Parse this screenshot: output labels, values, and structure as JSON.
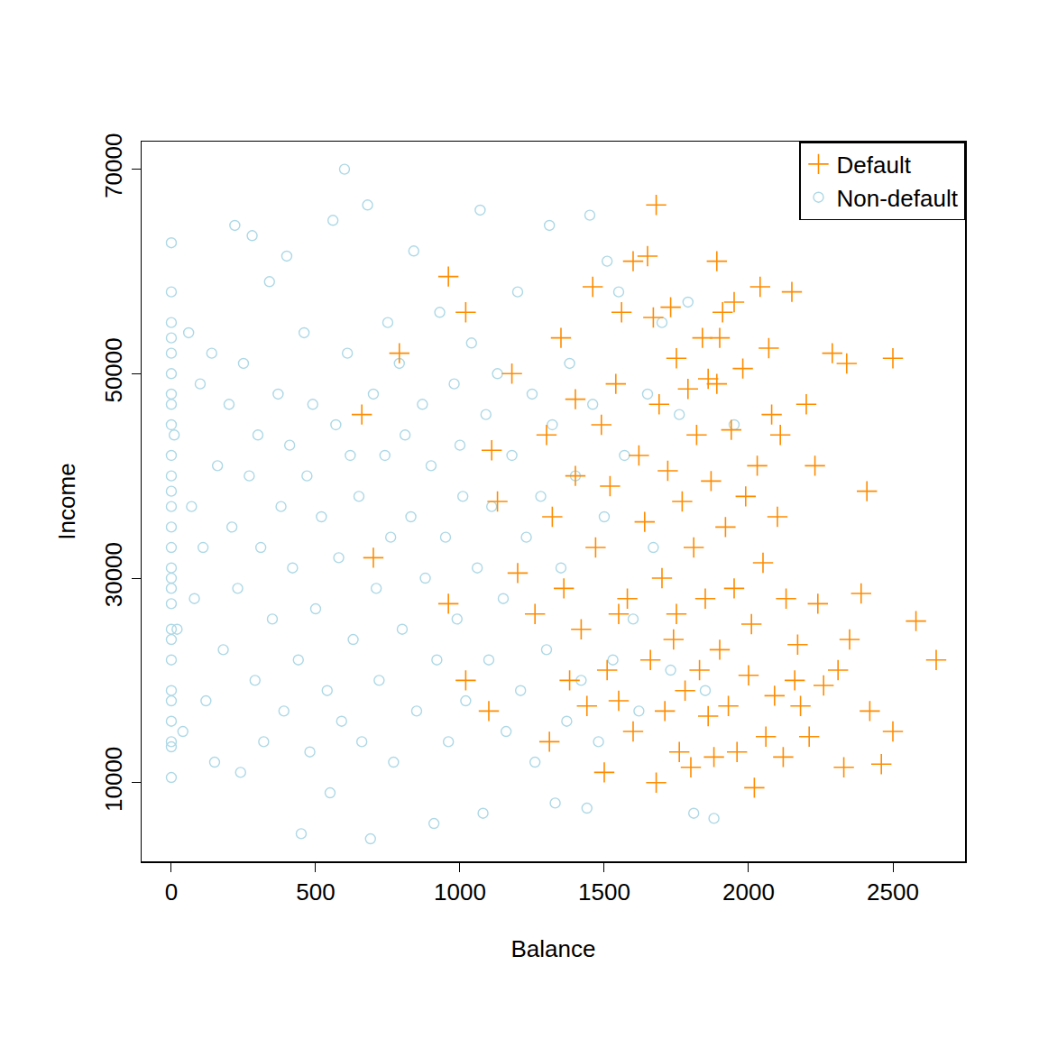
{
  "chart_data": {
    "type": "scatter",
    "x_label": "Balance",
    "y_label": "Income",
    "xlim": [
      -103,
      2750
    ],
    "ylim": [
      2300,
      72700
    ],
    "xticks": [
      0,
      500,
      1000,
      1500,
      2000,
      2500
    ],
    "yticks": [
      10000,
      30000,
      50000,
      70000
    ],
    "grid": false,
    "legend": "topright",
    "series": [
      {
        "name": "Default",
        "color": "#FF8C00",
        "marker": "cross",
        "x": [
          660,
          700,
          790,
          960,
          960,
          1020,
          1020,
          1100,
          1110,
          1130,
          1180,
          1200,
          1260,
          1300,
          1310,
          1320,
          1350,
          1360,
          1380,
          1400,
          1400,
          1420,
          1440,
          1460,
          1470,
          1490,
          1500,
          1510,
          1520,
          1540,
          1550,
          1560,
          1580,
          1600,
          1600,
          1620,
          1640,
          1650,
          1660,
          1670,
          1680,
          1680,
          1690,
          1700,
          1710,
          1720,
          1730,
          1740,
          1750,
          1760,
          1770,
          1780,
          1790,
          1800,
          1810,
          1820,
          1830,
          1840,
          1850,
          1860,
          1870,
          1880,
          1890,
          1890,
          1900,
          1910,
          1920,
          1930,
          1940,
          1950,
          1960,
          1980,
          1990,
          2000,
          2010,
          2020,
          2030,
          2040,
          2050,
          2060,
          2070,
          2080,
          2090,
          2100,
          2110,
          2120,
          2130,
          2150,
          2160,
          2170,
          2180,
          2200,
          2210,
          2230,
          2240,
          2260,
          2290,
          2310,
          2330,
          2340,
          2350,
          2390,
          2410,
          2420,
          2460,
          2500,
          2500,
          2580,
          2650,
          1950,
          1900,
          1860,
          1750,
          1550
        ],
        "y": [
          46000,
          32000,
          52000,
          59500,
          27500,
          56000,
          20000,
          17000,
          42500,
          37500,
          50000,
          30500,
          26500,
          44000,
          14000,
          36000,
          53500,
          29000,
          20000,
          47500,
          40000,
          25000,
          17500,
          58500,
          33000,
          45000,
          11000,
          21000,
          39000,
          49000,
          18000,
          56000,
          28000,
          61000,
          15000,
          42000,
          35500,
          61500,
          22000,
          55500,
          66500,
          10000,
          47000,
          30000,
          17000,
          40500,
          56500,
          24000,
          51500,
          13000,
          37500,
          19000,
          48500,
          11500,
          33000,
          44000,
          21000,
          53500,
          28000,
          16500,
          39500,
          12500,
          61000,
          49000,
          23000,
          56000,
          35000,
          17500,
          44500,
          29000,
          13000,
          50500,
          38000,
          20500,
          25500,
          9500,
          41000,
          58500,
          31500,
          14500,
          52500,
          46000,
          18500,
          36000,
          44000,
          12500,
          28000,
          58000,
          20000,
          23500,
          17500,
          47000,
          14500,
          41000,
          27500,
          19500,
          52000,
          21000,
          11500,
          51000,
          24000,
          28500,
          38500,
          17000,
          11800,
          51500,
          15000,
          25800,
          22000,
          57000,
          53500,
          49500,
          26500,
          26500
        ]
      },
      {
        "name": "Non-default",
        "color": "#ADD8E6",
        "marker": "circle",
        "x": [
          0,
          0,
          0,
          0,
          0,
          0,
          0,
          0,
          0,
          0,
          0,
          0,
          0,
          0,
          0,
          0,
          0,
          0,
          0,
          0,
          0,
          0,
          0,
          0,
          0,
          0,
          0,
          0,
          10,
          20,
          40,
          60,
          70,
          80,
          100,
          110,
          120,
          140,
          150,
          160,
          180,
          200,
          210,
          220,
          230,
          240,
          250,
          270,
          280,
          290,
          300,
          310,
          320,
          340,
          350,
          370,
          380,
          390,
          400,
          410,
          420,
          440,
          450,
          460,
          470,
          480,
          490,
          500,
          520,
          540,
          550,
          560,
          570,
          580,
          590,
          600,
          610,
          620,
          630,
          650,
          660,
          680,
          690,
          700,
          710,
          720,
          740,
          750,
          760,
          770,
          790,
          800,
          810,
          830,
          840,
          850,
          870,
          880,
          900,
          910,
          920,
          930,
          950,
          960,
          980,
          990,
          1000,
          1010,
          1020,
          1040,
          1060,
          1070,
          1080,
          1090,
          1100,
          1110,
          1130,
          1150,
          1160,
          1180,
          1200,
          1210,
          1230,
          1250,
          1260,
          1280,
          1300,
          1310,
          1320,
          1330,
          1350,
          1370,
          1380,
          1400,
          1420,
          1440,
          1450,
          1460,
          1480,
          1500,
          1510,
          1530,
          1550,
          1570,
          1600,
          1620,
          1650,
          1670,
          1700,
          1730,
          1760,
          1790,
          1810,
          1850,
          1880,
          1950
        ],
        "y": [
          62800,
          58000,
          55000,
          53500,
          52000,
          50000,
          48000,
          47000,
          45000,
          42000,
          40000,
          38500,
          37000,
          35000,
          33000,
          31000,
          30000,
          29000,
          27500,
          25000,
          24000,
          22000,
          19000,
          18000,
          16000,
          14000,
          13500,
          10500,
          44000,
          25000,
          15000,
          54000,
          37000,
          28000,
          49000,
          33000,
          18000,
          52000,
          12000,
          41000,
          23000,
          47000,
          35000,
          64500,
          29000,
          11000,
          51000,
          40000,
          63500,
          20000,
          44000,
          33000,
          14000,
          59000,
          26000,
          48000,
          37000,
          17000,
          61500,
          43000,
          31000,
          22000,
          5000,
          54000,
          40000,
          13000,
          47000,
          27000,
          36000,
          19000,
          9000,
          65000,
          45000,
          32000,
          16000,
          70000,
          52000,
          42000,
          24000,
          38000,
          14000,
          66500,
          4500,
          48000,
          29000,
          20000,
          42000,
          55000,
          34000,
          12000,
          51000,
          25000,
          44000,
          36000,
          62000,
          17000,
          47000,
          30000,
          41000,
          6000,
          22000,
          56000,
          34000,
          14000,
          49000,
          26000,
          43000,
          38000,
          18000,
          53000,
          31000,
          66000,
          7000,
          46000,
          22000,
          37000,
          50000,
          28000,
          15000,
          42000,
          58000,
          19000,
          34000,
          48000,
          12000,
          38000,
          23000,
          64500,
          45000,
          8000,
          31000,
          16000,
          51000,
          40000,
          20000,
          7500,
          65500,
          47000,
          14000,
          36000,
          61000,
          22000,
          58000,
          42000,
          26000,
          17000,
          48000,
          33000,
          55000,
          21000,
          46000,
          57000,
          7000,
          19000,
          6500,
          45000
        ]
      }
    ]
  }
}
